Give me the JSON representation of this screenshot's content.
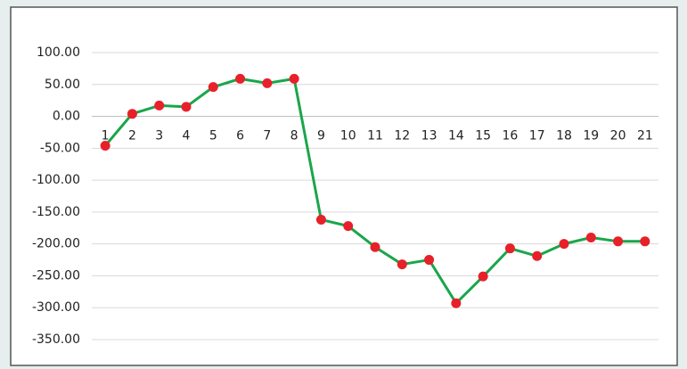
{
  "chart_data": {
    "type": "line",
    "categories": [
      "1",
      "2",
      "3",
      "4",
      "5",
      "6",
      "7",
      "8",
      "9",
      "10",
      "11",
      "12",
      "13",
      "14",
      "15",
      "16",
      "17",
      "18",
      "19",
      "20",
      "21"
    ],
    "series": [
      {
        "color": "#1aa64a",
        "marker_color": "#e8202a",
        "values": [
          -46,
          4,
          17,
          15,
          46,
          59,
          52,
          59,
          -162,
          -172,
          -205,
          -232,
          -225,
          -293,
          -251,
          -207,
          -219,
          -200,
          -190,
          -196,
          -196
        ]
      }
    ],
    "ylim": [
      -350,
      100
    ],
    "yticks": [
      {
        "value": -350,
        "label": "-350.00"
      },
      {
        "value": -300,
        "label": "-300.00"
      },
      {
        "value": -250,
        "label": "-250.00"
      },
      {
        "value": -200,
        "label": "-200.00"
      },
      {
        "value": -150,
        "label": "-150.00"
      },
      {
        "value": -100,
        "label": "-100.00"
      },
      {
        "value": -50,
        "label": "-50.00"
      },
      {
        "value": 0,
        "label": "0.00"
      },
      {
        "value": 50,
        "label": "50.00"
      },
      {
        "value": 100,
        "label": "100.00"
      }
    ],
    "grid": true
  }
}
